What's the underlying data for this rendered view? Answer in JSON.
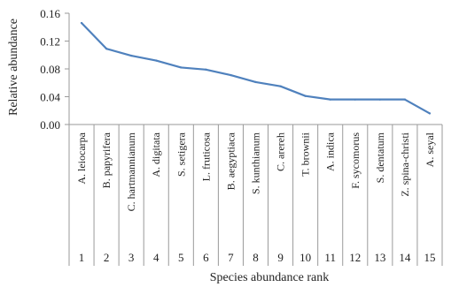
{
  "chart_data": {
    "type": "line",
    "title": "",
    "xlabel": "Species abundance rank",
    "ylabel": "Relative abundance",
    "ylim": [
      0,
      0.16
    ],
    "yticks": [
      0,
      0.04,
      0.08,
      0.12,
      0.16
    ],
    "ytick_labels": [
      "0.00",
      "0.04",
      "0.08",
      "0.12",
      "0.16"
    ],
    "grid": false,
    "categories": [
      "A. leiocarpa",
      "B. papyrifera",
      "C. hartmannianum",
      "A. digitata",
      "S. setigera",
      "L. fruticosa",
      "B. aegyptiaca",
      "S. kunthianum",
      "C. arereh",
      "T. brownii",
      "A. indica",
      "F. sycomorus",
      "S. dentatum",
      "Z. spina-christi",
      "A. seyal"
    ],
    "x": [
      1,
      2,
      3,
      4,
      5,
      6,
      7,
      8,
      9,
      10,
      11,
      12,
      13,
      14,
      15
    ],
    "series": [
      {
        "values": [
          0.146,
          0.109,
          0.099,
          0.092,
          0.082,
          0.079,
          0.071,
          0.061,
          0.055,
          0.041,
          0.036,
          0.036,
          0.036,
          0.036,
          0.016
        ],
        "color": "#4f81bd"
      }
    ]
  }
}
